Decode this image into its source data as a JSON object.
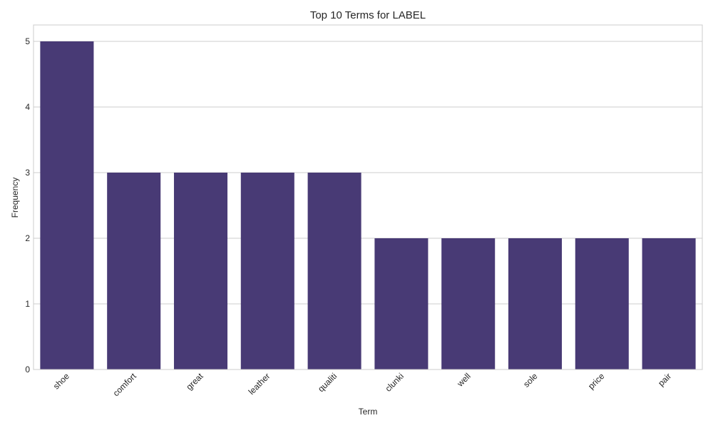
{
  "chart_data": {
    "type": "bar",
    "title": "Top 10 Terms for LABEL",
    "xlabel": "Term",
    "ylabel": "Frequency",
    "categories": [
      "shoe",
      "comfort",
      "great",
      "leather",
      "qualiti",
      "clunki",
      "well",
      "sole",
      "price",
      "pair"
    ],
    "values": [
      5,
      3,
      3,
      3,
      3,
      2,
      2,
      2,
      2,
      2
    ],
    "ylim": [
      0,
      5.25
    ],
    "yticks": [
      0,
      1,
      2,
      3,
      4,
      5
    ],
    "grid": true,
    "legend": "none",
    "bar_color": "#483a75"
  }
}
